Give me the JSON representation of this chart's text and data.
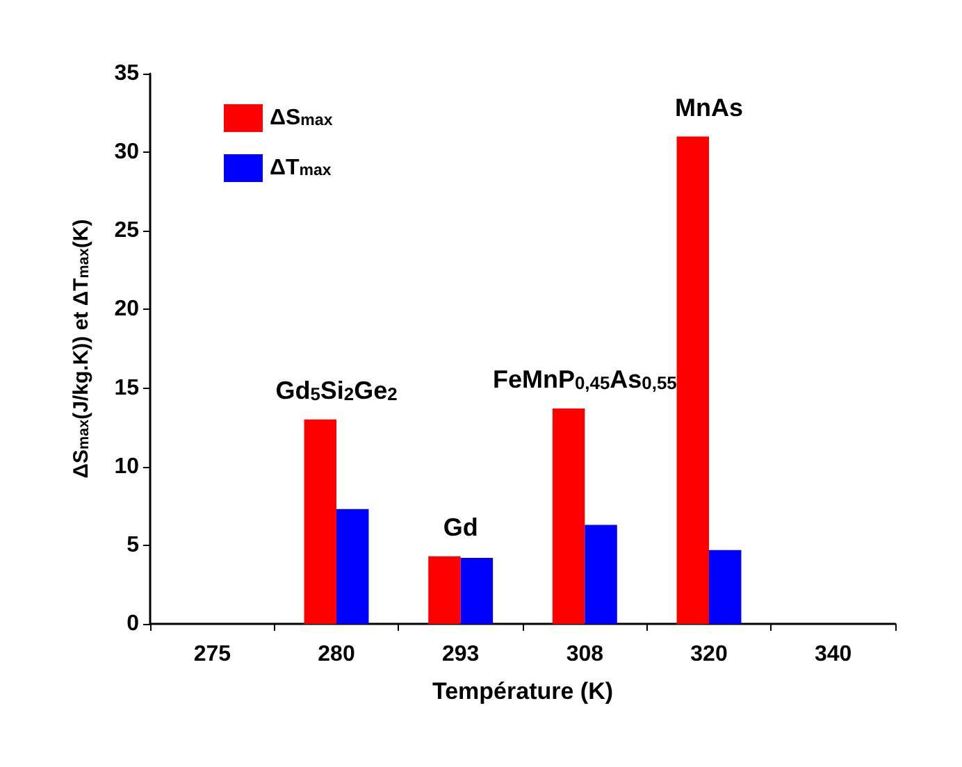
{
  "chart_data": {
    "type": "bar",
    "xlabel": "Température (K)",
    "ylabel": "ΔS$_{max}$(J/kg.K)) et ΔT$_{max}$(K)",
    "categories": [
      "275",
      "280",
      "293",
      "308",
      "320",
      "340"
    ],
    "series": [
      {
        "name": "ΔS$_{max}$",
        "color": "#ff0000",
        "values": [
          null,
          13,
          4.3,
          13.7,
          31,
          null
        ]
      },
      {
        "name": "ΔT$_{max}$",
        "color": "#0000ff",
        "values": [
          null,
          7.3,
          4.2,
          6.3,
          4.7,
          null
        ]
      }
    ],
    "ylim": [
      0,
      35
    ],
    "yticks": [
      0,
      5,
      10,
      15,
      20,
      25,
      30,
      35
    ],
    "grid": false,
    "legend": "top left",
    "annotations": [
      "Gd$_{5}$Si$_{2}$Ge$_{2}$",
      "Gd",
      "FeMnP$_{0,45}$As$_{0,55}$",
      "MnAs"
    ]
  }
}
